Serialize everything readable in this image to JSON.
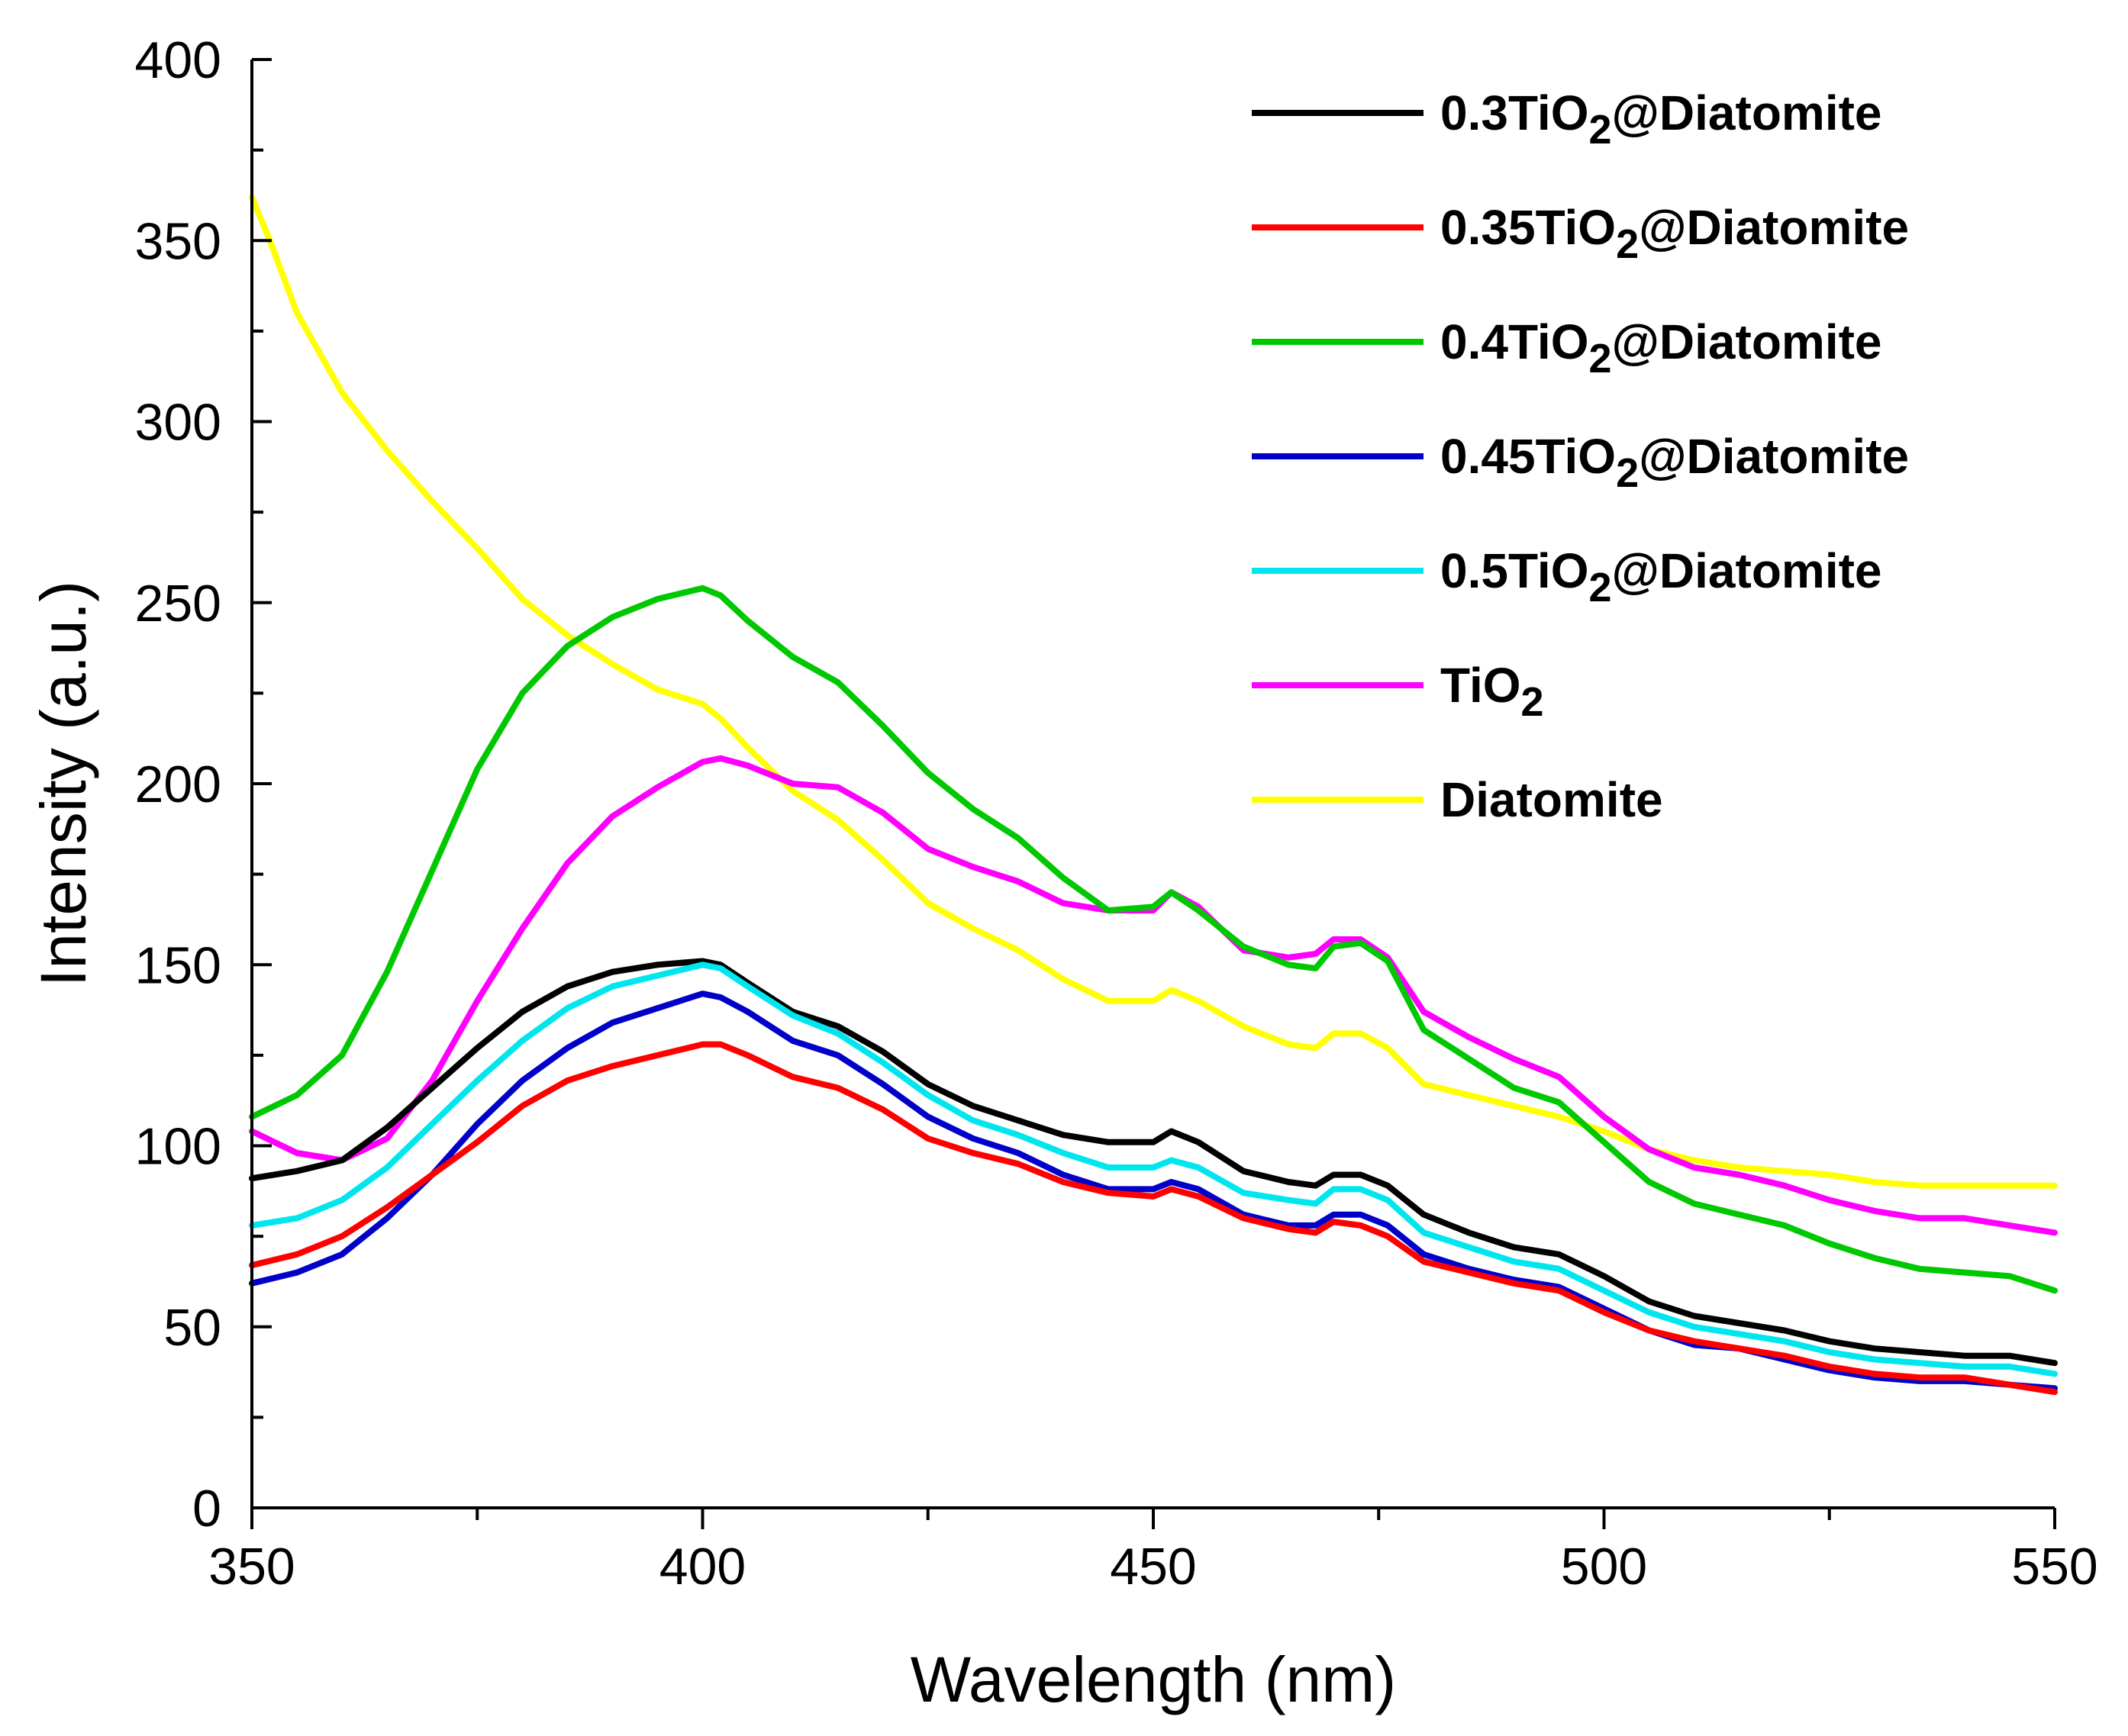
{
  "chart_data": {
    "type": "line",
    "title": "",
    "xlabel": "Wavelength (nm)",
    "ylabel": "Intensity (a.u.)",
    "xlim": [
      350,
      550
    ],
    "ylim": [
      0,
      400
    ],
    "xticks": [
      350,
      400,
      450,
      500,
      550
    ],
    "yticks": [
      0,
      50,
      100,
      150,
      200,
      250,
      300,
      350,
      400
    ],
    "grid": false,
    "legend_position": "top-right",
    "series": [
      {
        "name": "0.3TiO2@Diatomite",
        "label_main": "0.3TiO",
        "label_sub": "2",
        "label_tail": "@Diatomite",
        "color": "#000000",
        "x": [
          350,
          355,
          360,
          365,
          370,
          375,
          380,
          385,
          390,
          395,
          400,
          402,
          405,
          410,
          415,
          420,
          425,
          430,
          435,
          440,
          445,
          450,
          452,
          455,
          460,
          465,
          468,
          470,
          473,
          476,
          480,
          485,
          490,
          495,
          500,
          505,
          510,
          515,
          520,
          525,
          530,
          535,
          540,
          545,
          550
        ],
        "y": [
          91,
          93,
          96,
          105,
          116,
          127,
          137,
          144,
          148,
          150,
          151,
          150,
          145,
          137,
          133,
          126,
          117,
          111,
          107,
          103,
          101,
          101,
          104,
          101,
          93,
          90,
          89,
          92,
          92,
          89,
          81,
          76,
          72,
          70,
          64,
          57,
          53,
          51,
          49,
          46,
          44,
          43,
          42,
          42,
          40
        ]
      },
      {
        "name": "0.35TiO2@Diatomite",
        "label_main": "0.35TiO",
        "label_sub": "2",
        "label_tail": "@Diatomite",
        "color": "#ff0000",
        "x": [
          350,
          355,
          360,
          365,
          370,
          375,
          380,
          385,
          390,
          395,
          400,
          402,
          405,
          410,
          415,
          420,
          425,
          430,
          435,
          440,
          445,
          450,
          452,
          455,
          460,
          465,
          468,
          470,
          473,
          476,
          480,
          485,
          490,
          495,
          500,
          505,
          510,
          515,
          520,
          525,
          530,
          535,
          540,
          545,
          550
        ],
        "y": [
          67,
          70,
          75,
          83,
          92,
          101,
          111,
          118,
          122,
          125,
          128,
          128,
          125,
          119,
          116,
          110,
          102,
          98,
          95,
          90,
          87,
          86,
          88,
          86,
          80,
          77,
          76,
          79,
          78,
          75,
          68,
          65,
          62,
          60,
          54,
          49,
          46,
          44,
          42,
          39,
          37,
          36,
          36,
          34,
          32
        ]
      },
      {
        "name": "0.4TiO2@Diatomite",
        "label_main": "0.4TiO",
        "label_sub": "2",
        "label_tail": "@Diatomite",
        "color": "#00c800",
        "x": [
          350,
          355,
          360,
          365,
          370,
          375,
          380,
          385,
          390,
          395,
          400,
          402,
          405,
          410,
          415,
          420,
          425,
          430,
          435,
          440,
          445,
          450,
          452,
          455,
          460,
          465,
          468,
          470,
          473,
          476,
          480,
          485,
          490,
          495,
          500,
          505,
          510,
          515,
          520,
          525,
          530,
          535,
          540,
          545,
          550
        ],
        "y": [
          108,
          114,
          125,
          148,
          176,
          204,
          225,
          238,
          246,
          251,
          254,
          252,
          245,
          235,
          228,
          216,
          203,
          193,
          185,
          174,
          165,
          166,
          170,
          165,
          155,
          150,
          149,
          155,
          156,
          151,
          132,
          124,
          116,
          112,
          101,
          90,
          84,
          81,
          78,
          73,
          69,
          66,
          65,
          64,
          60
        ]
      },
      {
        "name": "0.45TiO2@Diatomite",
        "label_main": "0.45TiO",
        "label_sub": "2",
        "label_tail": "@Diatomite",
        "color": "#0000c8",
        "x": [
          350,
          355,
          360,
          365,
          370,
          375,
          380,
          385,
          390,
          395,
          400,
          402,
          405,
          410,
          415,
          420,
          425,
          430,
          435,
          440,
          445,
          450,
          452,
          455,
          460,
          465,
          468,
          470,
          473,
          476,
          480,
          485,
          490,
          495,
          500,
          505,
          510,
          515,
          520,
          525,
          530,
          535,
          540,
          545,
          550
        ],
        "y": [
          62,
          65,
          70,
          80,
          92,
          106,
          118,
          127,
          134,
          138,
          142,
          141,
          137,
          129,
          125,
          117,
          108,
          102,
          98,
          92,
          88,
          88,
          90,
          88,
          81,
          78,
          78,
          81,
          81,
          78,
          70,
          66,
          63,
          61,
          55,
          49,
          45,
          44,
          41,
          38,
          36,
          35,
          35,
          34,
          33
        ]
      },
      {
        "name": "0.5TiO2@Diatomite",
        "label_main": "0.5TiO",
        "label_sub": "2",
        "label_tail": "@Diatomite",
        "color": "#00e6ee",
        "x": [
          350,
          355,
          360,
          365,
          370,
          375,
          380,
          385,
          390,
          395,
          400,
          402,
          405,
          410,
          415,
          420,
          425,
          430,
          435,
          440,
          445,
          450,
          452,
          455,
          460,
          465,
          468,
          470,
          473,
          476,
          480,
          485,
          490,
          495,
          500,
          505,
          510,
          515,
          520,
          525,
          530,
          535,
          540,
          545,
          550
        ],
        "y": [
          78,
          80,
          85,
          94,
          106,
          118,
          129,
          138,
          144,
          147,
          150,
          149,
          144,
          136,
          131,
          123,
          114,
          107,
          103,
          98,
          94,
          94,
          96,
          94,
          87,
          85,
          84,
          88,
          88,
          85,
          76,
          72,
          68,
          66,
          60,
          54,
          50,
          48,
          46,
          43,
          41,
          40,
          39,
          39,
          37
        ]
      },
      {
        "name": "TiO2",
        "label_main": "TiO",
        "label_sub": "2",
        "label_tail": "",
        "color": "#ff00ff",
        "x": [
          350,
          355,
          360,
          365,
          370,
          375,
          380,
          385,
          390,
          395,
          400,
          402,
          405,
          410,
          415,
          420,
          425,
          430,
          435,
          440,
          445,
          450,
          452,
          455,
          460,
          465,
          468,
          470,
          473,
          476,
          480,
          485,
          490,
          495,
          500,
          505,
          510,
          515,
          520,
          525,
          530,
          535,
          540,
          545,
          550
        ],
        "y": [
          104,
          98,
          96,
          102,
          118,
          140,
          160,
          178,
          191,
          199,
          206,
          207,
          205,
          200,
          199,
          192,
          182,
          177,
          173,
          167,
          165,
          165,
          170,
          166,
          154,
          152,
          153,
          157,
          157,
          152,
          137,
          130,
          124,
          119,
          108,
          99,
          94,
          92,
          89,
          85,
          82,
          80,
          80,
          78,
          76
        ]
      },
      {
        "name": "Diatomite",
        "label_main": "Diatomite",
        "label_sub": "",
        "label_tail": "",
        "color": "#ffff00",
        "x": [
          350,
          352,
          355,
          360,
          365,
          370,
          375,
          380,
          385,
          390,
          395,
          400,
          402,
          405,
          410,
          415,
          420,
          425,
          430,
          435,
          440,
          445,
          450,
          452,
          455,
          460,
          465,
          468,
          470,
          473,
          476,
          480,
          485,
          490,
          495,
          500,
          505,
          510,
          515,
          520,
          525,
          530,
          535,
          540,
          545,
          550
        ],
        "y": [
          362,
          350,
          330,
          308,
          292,
          278,
          265,
          251,
          241,
          233,
          226,
          222,
          218,
          210,
          198,
          190,
          179,
          167,
          160,
          154,
          146,
          140,
          140,
          143,
          140,
          133,
          128,
          127,
          131,
          131,
          127,
          117,
          114,
          111,
          108,
          104,
          99,
          96,
          94,
          93,
          92,
          90,
          89,
          89,
          89,
          89
        ]
      }
    ]
  }
}
